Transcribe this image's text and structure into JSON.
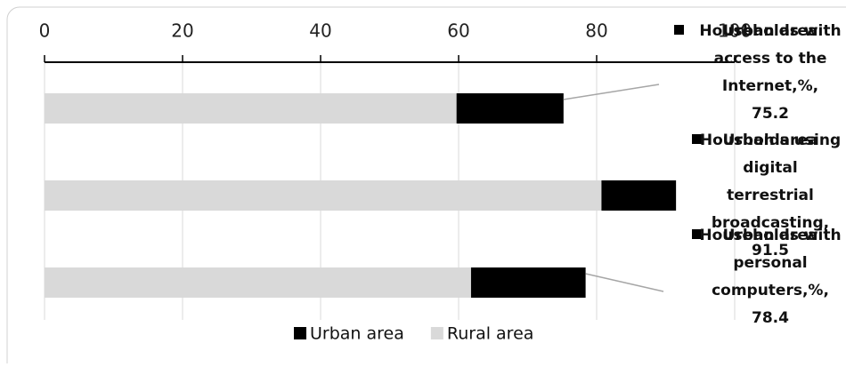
{
  "chart_data": {
    "type": "bar",
    "orientation": "horizontal",
    "overlap": true,
    "categories": [
      "Households with access to the Internet,%,",
      "Housholds using digital terrestrial broadcasting,",
      "Households with personal computers,%,"
    ],
    "series": [
      {
        "name": "Urban area",
        "color": "#000000",
        "values": [
          75.2,
          91.5,
          78.4
        ]
      },
      {
        "name": "Rural area",
        "color": "#d9d9d9",
        "values": [
          59.7,
          80.7,
          61.8
        ]
      }
    ],
    "xlim": [
      0,
      100
    ],
    "xticks": [
      0,
      20,
      40,
      60,
      80,
      100
    ],
    "grid": true,
    "legend": "bottom"
  }
}
